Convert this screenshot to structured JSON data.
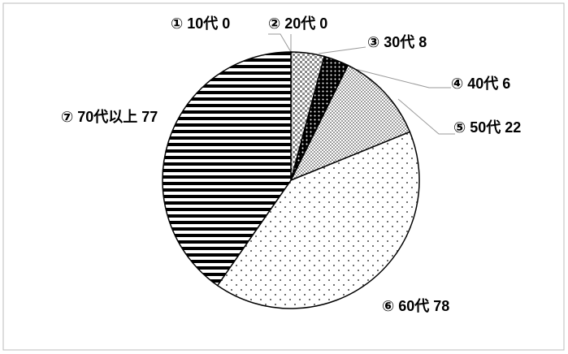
{
  "chart_data": {
    "type": "pie",
    "categories": [
      "① 10代",
      "② 20代",
      "③ 30代",
      "④ 40代",
      "⑤ 50代",
      "⑥ 60代",
      "⑦ 70代以上"
    ],
    "values": [
      0,
      0,
      8,
      6,
      22,
      78,
      77
    ]
  }
}
